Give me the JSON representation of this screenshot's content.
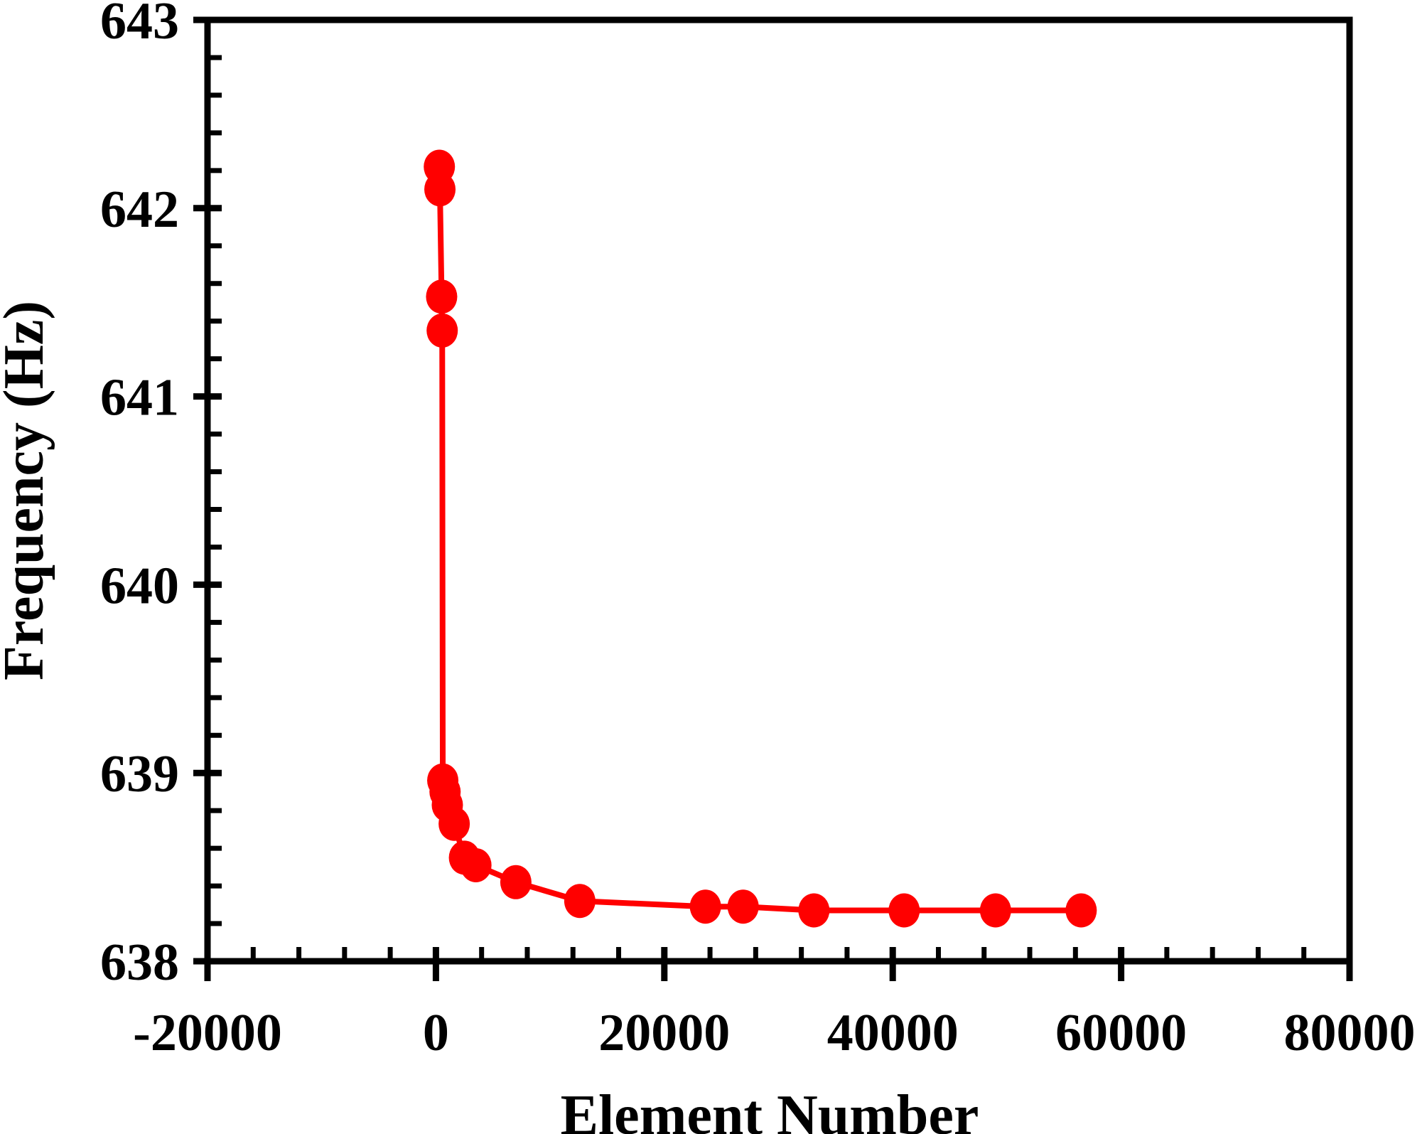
{
  "chart_data": {
    "type": "line",
    "title": "",
    "xlabel": "Element Number",
    "ylabel": "Frequency (Hz)",
    "xlim": [
      -20000,
      80000
    ],
    "ylim": [
      638,
      643
    ],
    "x_ticks": [
      -20000,
      0,
      20000,
      40000,
      60000,
      80000
    ],
    "x_tick_labels": [
      "-20000",
      "0",
      "20000",
      "40000",
      "60000",
      "80000"
    ],
    "y_ticks": [
      638,
      639,
      640,
      641,
      642,
      643
    ],
    "y_tick_labels": [
      "638",
      "639",
      "640",
      "641",
      "642",
      "643"
    ],
    "grid": false,
    "legend": null,
    "series": [
      {
        "name": "Frequency",
        "color": "#ff0000",
        "marker": "circle",
        "x": [
          300,
          350,
          500,
          550,
          600,
          800,
          1000,
          1600,
          2500,
          3500,
          7000,
          12600,
          23600,
          26900,
          33100,
          41000,
          49000,
          56500
        ],
        "y": [
          642.22,
          642.1,
          641.53,
          641.35,
          638.96,
          638.9,
          638.83,
          638.73,
          638.55,
          638.51,
          638.42,
          638.32,
          638.29,
          638.29,
          638.27,
          638.27,
          638.27,
          638.27
        ]
      }
    ]
  }
}
